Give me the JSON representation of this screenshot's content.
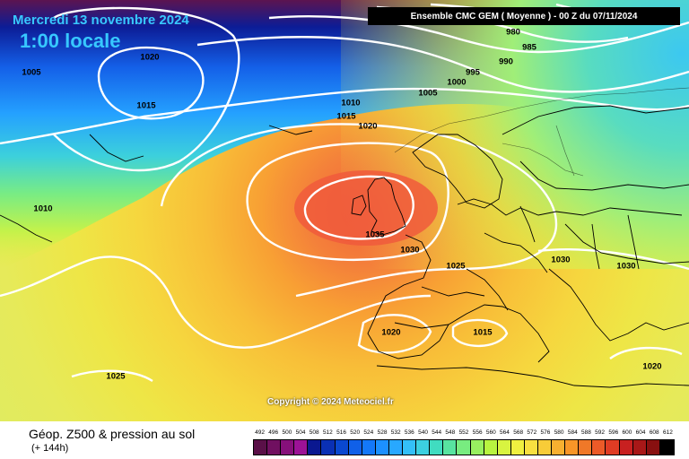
{
  "header": {
    "date": "Mercredi 13 novembre 2024",
    "time": "1:00 locale",
    "model_run": "Ensemble CMC GEM  ( Moyenne )  -  00 Z du 07/11/2024"
  },
  "map": {
    "copyright": "Copyright © 2024 Meteociel.fr",
    "isobar_labels": [
      "980",
      "985",
      "990",
      "995",
      "1000",
      "1005",
      "1005",
      "1010",
      "1015",
      "1020",
      "1020",
      "1015",
      "1010",
      "1035",
      "1030",
      "1025",
      "1030",
      "1030",
      "1020",
      "1015",
      "1020",
      "1025"
    ]
  },
  "legend": {
    "title": "Géop. Z500 & pression au sol",
    "subtitle": "(+ 144h)",
    "scale_values": [
      "492",
      "496",
      "500",
      "504",
      "508",
      "512",
      "516",
      "520",
      "524",
      "528",
      "532",
      "536",
      "540",
      "544",
      "548",
      "552",
      "556",
      "560",
      "564",
      "568",
      "572",
      "576",
      "580",
      "584",
      "588",
      "592",
      "596",
      "600",
      "604",
      "608",
      "612"
    ],
    "scale_colors": [
      "#5a1048",
      "#701060",
      "#86107a",
      "#9c1296",
      "#0a1890",
      "#0a30b4",
      "#0a48d0",
      "#1060e8",
      "#1478f8",
      "#1c90ff",
      "#28a8ff",
      "#34c0f8",
      "#3cd0e0",
      "#40dcc0",
      "#58e4a0",
      "#78ec80",
      "#98f060",
      "#b8f440",
      "#d8f440",
      "#f0f040",
      "#f8e040",
      "#f8cc38",
      "#f8b030",
      "#f89628",
      "#f07828",
      "#ec5a28",
      "#e03c24",
      "#c82020",
      "#a81818",
      "#881010",
      "#000000"
    ]
  }
}
